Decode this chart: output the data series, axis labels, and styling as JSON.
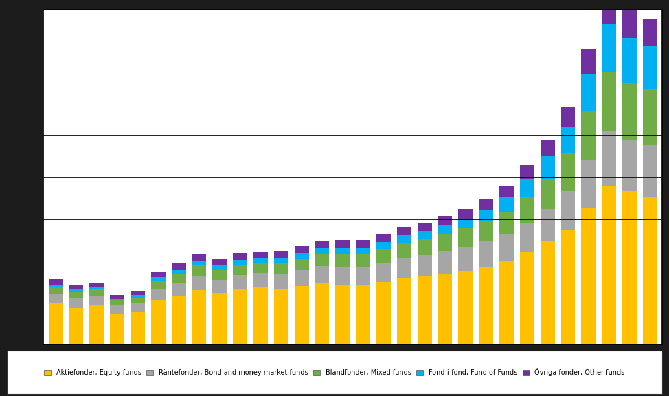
{
  "series_names": [
    "Aktiefonder, Equity funds",
    "Räntefonder, Bond and money market funds",
    "Blandfonder, Mixed funds",
    "Fond-i-fond, Fund of Funds",
    "Övriga fonder, Other funds"
  ],
  "series": {
    "Aktiefonder, Equity funds": [
      150,
      130,
      140,
      110,
      115,
      160,
      175,
      195,
      185,
      200,
      205,
      200,
      210,
      220,
      215,
      215,
      225,
      240,
      245,
      255,
      265,
      280,
      300,
      330,
      370,
      410,
      490,
      570,
      550,
      530
    ],
    "Räntefonder, Bond and money market funds": [
      30,
      35,
      35,
      30,
      32,
      40,
      45,
      50,
      48,
      50,
      52,
      55,
      58,
      62,
      65,
      65,
      68,
      72,
      75,
      80,
      85,
      90,
      95,
      105,
      115,
      140,
      170,
      195,
      185,
      185
    ],
    "Blandfonder, Mixed funds": [
      25,
      22,
      22,
      18,
      22,
      30,
      34,
      38,
      36,
      36,
      36,
      38,
      40,
      43,
      46,
      46,
      50,
      54,
      58,
      62,
      66,
      72,
      80,
      95,
      110,
      135,
      175,
      215,
      205,
      200
    ],
    "Fond-i-fond, Fund of Funds": [
      10,
      10,
      8,
      6,
      8,
      12,
      15,
      17,
      15,
      17,
      17,
      18,
      19,
      21,
      23,
      23,
      25,
      27,
      29,
      32,
      36,
      42,
      52,
      65,
      80,
      95,
      135,
      170,
      160,
      155
    ],
    "Övriga fonder, Other funds": [
      20,
      18,
      17,
      14,
      16,
      20,
      23,
      24,
      22,
      24,
      24,
      25,
      26,
      27,
      27,
      27,
      28,
      29,
      30,
      32,
      34,
      37,
      42,
      48,
      57,
      72,
      90,
      110,
      105,
      100
    ]
  },
  "colors_list": [
    "#FFC000",
    "#A6A6A6",
    "#70AD47",
    "#00B0F0",
    "#7030A0"
  ],
  "legend_labels": [
    "Aktiefonder, Equity funds",
    "Räntefonder, Bond and money market funds",
    "Blandfonder, Mixed funds",
    "Fond-i-fond, Fund of Funds",
    "Övriga fonder, Other funds"
  ],
  "ylim": [
    0,
    1200
  ],
  "ytick_count": 8,
  "background_color": "#FFFFFF",
  "outer_background": "#1C1C1C",
  "grid_color": "#000000",
  "bar_width": 0.7,
  "n_bars": 30
}
